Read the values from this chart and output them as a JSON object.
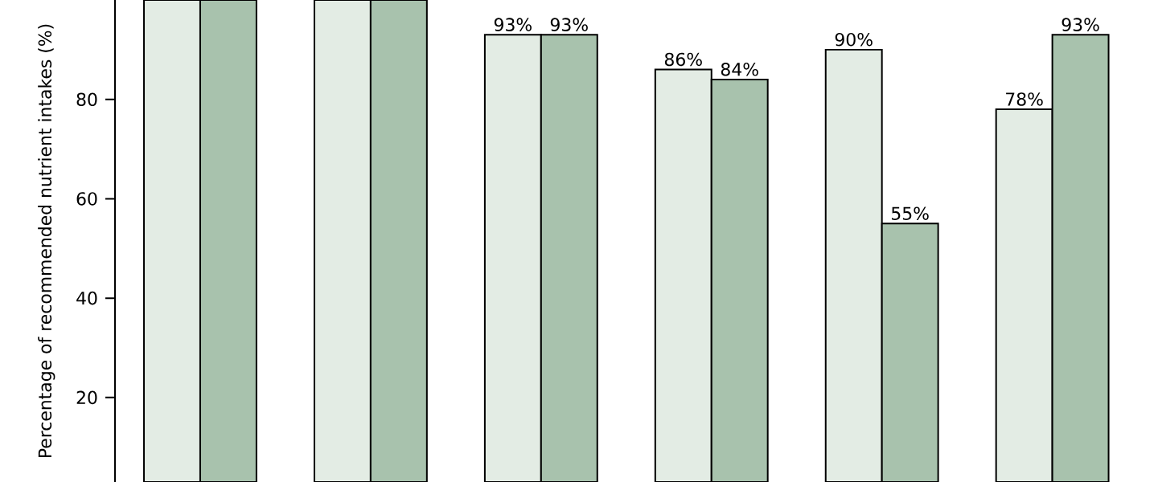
{
  "chart_data": {
    "type": "bar",
    "ylabel": "Percentage of recommended nutrient intakes (%)",
    "categories": [
      null,
      null,
      null,
      null,
      null,
      null
    ],
    "series": [
      {
        "color": "#e3ece4",
        "values": [
          100,
          100,
          93,
          86,
          90,
          78
        ],
        "value_labels": [
          null,
          null,
          "93%",
          "86%",
          "90%",
          "78%"
        ]
      },
      {
        "color": "#a8c2ad",
        "values": [
          100,
          100,
          93,
          84,
          55,
          93
        ],
        "value_labels": [
          null,
          null,
          "93%",
          "84%",
          "55%",
          "93%"
        ]
      }
    ],
    "ylim": [
      3,
      100
    ],
    "yticks": [
      20,
      40,
      60,
      80
    ]
  }
}
